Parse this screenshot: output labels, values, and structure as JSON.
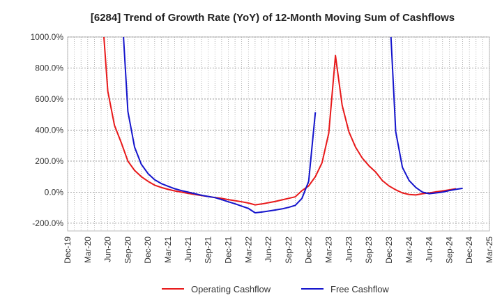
{
  "chart_data": {
    "type": "line",
    "title": "[6284]  Trend of Growth Rate (YoY) of 12-Month Moving Sum of Cashflows",
    "xlabel": "",
    "ylabel": "",
    "x_ticks": [
      "Dec-19",
      "Mar-20",
      "Jun-20",
      "Sep-20",
      "Dec-20",
      "Mar-21",
      "Jun-21",
      "Sep-21",
      "Dec-21",
      "Mar-22",
      "Jun-22",
      "Sep-22",
      "Dec-22",
      "Mar-23",
      "Jun-23",
      "Sep-23",
      "Dec-23",
      "Mar-24",
      "Jun-24",
      "Sep-24",
      "Dec-24",
      "Mar-25"
    ],
    "y_ticks": [
      1000,
      800,
      600,
      400,
      200,
      0,
      -200
    ],
    "y_tick_labels": [
      "1000.0%",
      "800.0%",
      "600.0%",
      "400.0%",
      "200.0%",
      "0.0%",
      "-200.0%"
    ],
    "ylim": [
      -250,
      1000
    ],
    "grid": true,
    "legend_position": "bottom",
    "series": [
      {
        "name": "Operating Cashflow",
        "color": "#e8191a",
        "points": [
          [
            "May-20",
            1250
          ],
          [
            "Jun-20",
            650
          ],
          [
            "Jul-20",
            430
          ],
          [
            "Aug-20",
            320
          ],
          [
            "Sep-20",
            200
          ],
          [
            "Oct-20",
            140
          ],
          [
            "Nov-20",
            100
          ],
          [
            "Dec-20",
            70
          ],
          [
            "Jan-21",
            45
          ],
          [
            "Feb-21",
            30
          ],
          [
            "Mar-21",
            18
          ],
          [
            "Apr-21",
            8
          ],
          [
            "May-21",
            0
          ],
          [
            "Jun-21",
            -8
          ],
          [
            "Jul-21",
            -15
          ],
          [
            "Aug-21",
            -22
          ],
          [
            "Sep-21",
            -28
          ],
          [
            "Oct-21",
            -35
          ],
          [
            "Nov-21",
            -40
          ],
          [
            "Dec-21",
            -48
          ],
          [
            "Jan-22",
            -55
          ],
          [
            "Feb-22",
            -62
          ],
          [
            "Mar-22",
            -70
          ],
          [
            "Apr-22",
            -82
          ],
          [
            "May-22",
            -76
          ],
          [
            "Jun-22",
            -68
          ],
          [
            "Jul-22",
            -60
          ],
          [
            "Aug-22",
            -50
          ],
          [
            "Sep-22",
            -40
          ],
          [
            "Oct-22",
            -30
          ],
          [
            "Nov-22",
            10
          ],
          [
            "Dec-22",
            40
          ],
          [
            "Jan-23",
            100
          ],
          [
            "Feb-23",
            190
          ],
          [
            "Mar-23",
            380
          ],
          [
            "Apr-23",
            880
          ],
          [
            "May-23",
            560
          ],
          [
            "Jun-23",
            390
          ],
          [
            "Jul-23",
            290
          ],
          [
            "Aug-23",
            220
          ],
          [
            "Sep-23",
            170
          ],
          [
            "Oct-23",
            130
          ],
          [
            "Nov-23",
            75
          ],
          [
            "Dec-23",
            40
          ],
          [
            "Jan-24",
            15
          ],
          [
            "Feb-24",
            -5
          ],
          [
            "Mar-24",
            -15
          ],
          [
            "Apr-24",
            -18
          ],
          [
            "May-24",
            -10
          ],
          [
            "Jun-24",
            -5
          ],
          [
            "Jul-24",
            2
          ],
          [
            "Aug-24",
            8
          ],
          [
            "Sep-24",
            15
          ],
          [
            "Oct-24",
            22
          ]
        ]
      },
      {
        "name": "Free Cashflow",
        "color": "#1414cc",
        "points": [
          [
            "Aug-20",
            1250
          ],
          [
            "Sep-20",
            520
          ],
          [
            "Oct-20",
            290
          ],
          [
            "Nov-20",
            180
          ],
          [
            "Dec-20",
            120
          ],
          [
            "Jan-21",
            80
          ],
          [
            "Feb-21",
            55
          ],
          [
            "Mar-21",
            38
          ],
          [
            "Apr-21",
            22
          ],
          [
            "May-21",
            10
          ],
          [
            "Jun-21",
            0
          ],
          [
            "Jul-21",
            -10
          ],
          [
            "Aug-21",
            -20
          ],
          [
            "Sep-21",
            -28
          ],
          [
            "Oct-21",
            -35
          ],
          [
            "Nov-21",
            -48
          ],
          [
            "Dec-21",
            -62
          ],
          [
            "Jan-22",
            -75
          ],
          [
            "Feb-22",
            -90
          ],
          [
            "Mar-22",
            -105
          ],
          [
            "Apr-22",
            -133
          ],
          [
            "May-22",
            -128
          ],
          [
            "Jun-22",
            -122
          ],
          [
            "Jul-22",
            -115
          ],
          [
            "Aug-22",
            -108
          ],
          [
            "Sep-22",
            -98
          ],
          [
            "Oct-22",
            -85
          ],
          [
            "Nov-22",
            -40
          ],
          [
            "Dec-22",
            70
          ],
          [
            "Jan-23",
            515
          ]
        ],
        "extra_points": [
          [
            "Dec-23",
            1250
          ],
          [
            "Jan-24",
            390
          ],
          [
            "Feb-24",
            160
          ],
          [
            "Mar-24",
            75
          ],
          [
            "Apr-24",
            30
          ],
          [
            "May-24",
            0
          ],
          [
            "Jun-24",
            -10
          ],
          [
            "Jul-24",
            -5
          ],
          [
            "Aug-24",
            0
          ],
          [
            "Sep-24",
            10
          ],
          [
            "Oct-24",
            18
          ],
          [
            "Nov-24",
            25
          ]
        ]
      }
    ]
  }
}
